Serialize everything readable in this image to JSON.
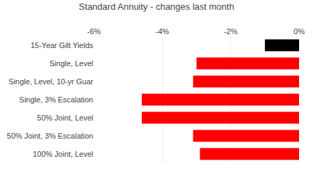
{
  "chart_data": {
    "type": "bar",
    "orientation": "horizontal",
    "title": "Standard Annuity - changes last month",
    "categories": [
      "100% Joint, Level",
      "50% Joint, 3% Escalation",
      "50% Joint, Level",
      "Single, 3% Escalation",
      "Single, Level, 10-yr Guar",
      "Single, Level",
      "15-Year Gilt Yields"
    ],
    "values": [
      -2.9,
      -3.1,
      -4.6,
      -4.6,
      -3.1,
      -3.0,
      -1.0
    ],
    "colors": [
      "#ff0000",
      "#ff0000",
      "#ff0000",
      "#ff0000",
      "#ff0000",
      "#ff0000",
      "#000000"
    ],
    "xlim": [
      -6,
      0
    ],
    "xticks": [
      {
        "value": -6,
        "label": "-6%"
      },
      {
        "value": -4,
        "label": "-4%"
      },
      {
        "value": -2,
        "label": "-2%"
      },
      {
        "value": 0,
        "label": "0%"
      }
    ],
    "grid": true
  }
}
